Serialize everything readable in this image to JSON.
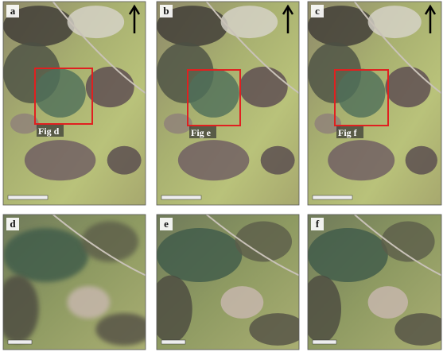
{
  "panels": [
    {
      "label": "a",
      "inset_label": "Fig d"
    },
    {
      "label": "b",
      "inset_label": "Fig e"
    },
    {
      "label": "c",
      "inset_label": "Fig f"
    },
    {
      "label": "d"
    },
    {
      "label": "e"
    },
    {
      "label": "f"
    }
  ]
}
